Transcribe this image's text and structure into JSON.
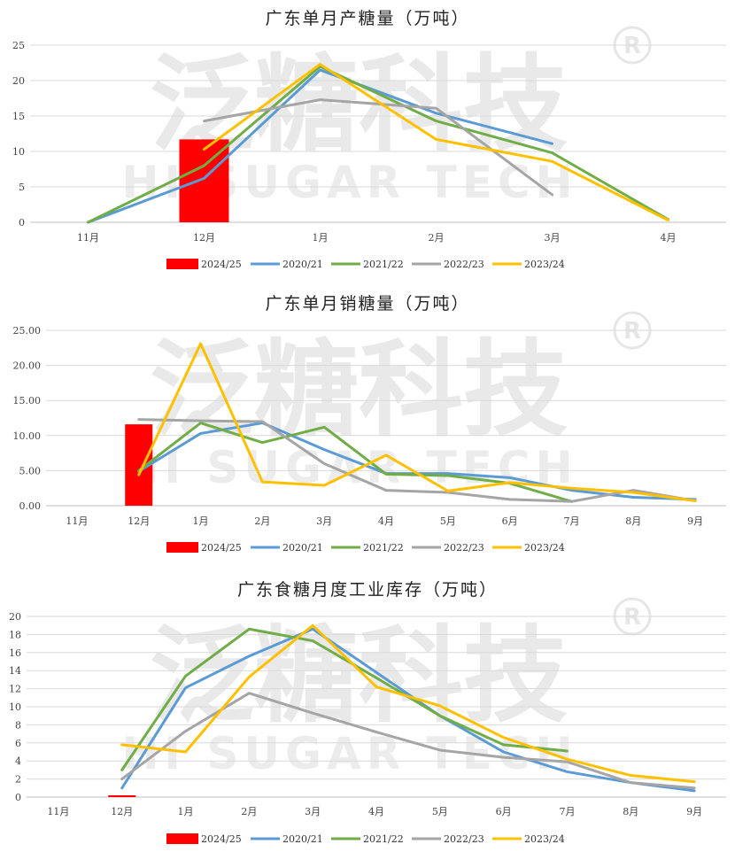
{
  "watermark": {
    "cn": "泛糖科技",
    "en": "HI SUGAR TECH",
    "mark": "®"
  },
  "colors": {
    "2024/25": "#ff0000",
    "2020/21": "#5b9bd5",
    "2021/22": "#70ad47",
    "2022/23": "#a5a5a5",
    "2023/24": "#ffc000"
  },
  "chart_data": [
    {
      "type": "line",
      "title": "广东单月产糖量（万吨）",
      "categories": [
        "11月",
        "12月",
        "1月",
        "2月",
        "3月",
        "4月"
      ],
      "ylim": [
        0,
        25
      ],
      "yticks": [
        "0",
        "5",
        "10",
        "15",
        "20",
        "25"
      ],
      "ytick_values": [
        0,
        5,
        10,
        15,
        20,
        25
      ],
      "grid": true,
      "legend": "bottom",
      "series": [
        {
          "name": "2024/25",
          "kind": "bar",
          "values": [
            null,
            11.7,
            null,
            null,
            null,
            null
          ]
        },
        {
          "name": "2020/21",
          "kind": "line",
          "values": [
            0,
            6.2,
            21.5,
            15.4,
            11.1,
            null
          ]
        },
        {
          "name": "2021/22",
          "kind": "line",
          "values": [
            0,
            8.0,
            22.0,
            14.3,
            9.8,
            0.4
          ]
        },
        {
          "name": "2022/23",
          "kind": "line",
          "values": [
            null,
            14.3,
            17.3,
            16.1,
            3.9,
            null
          ]
        },
        {
          "name": "2023/24",
          "kind": "line",
          "values": [
            null,
            10.3,
            22.3,
            11.7,
            8.6,
            0.3
          ]
        }
      ]
    },
    {
      "type": "line",
      "title": "广东单月销糖量（万吨）",
      "categories": [
        "11月",
        "12月",
        "1月",
        "2月",
        "3月",
        "4月",
        "5月",
        "6月",
        "7月",
        "8月",
        "9月"
      ],
      "ylim": [
        0,
        25
      ],
      "yticks": [
        "0.00",
        "5.00",
        "10.00",
        "15.00",
        "20.00",
        "25.00"
      ],
      "ytick_values": [
        0,
        5,
        10,
        15,
        20,
        25
      ],
      "grid": true,
      "legend": "bottom",
      "series": [
        {
          "name": "2024/25",
          "kind": "bar",
          "values": [
            null,
            11.6,
            null,
            null,
            null,
            null,
            null,
            null,
            null,
            null,
            null
          ]
        },
        {
          "name": "2020/21",
          "kind": "line",
          "values": [
            null,
            4.9,
            10.3,
            11.8,
            8.0,
            4.6,
            4.6,
            4.0,
            2.2,
            1.2,
            0.9
          ]
        },
        {
          "name": "2021/22",
          "kind": "line",
          "values": [
            null,
            5.0,
            11.8,
            9.0,
            11.2,
            4.5,
            4.3,
            3.2,
            0.6,
            null,
            null
          ]
        },
        {
          "name": "2022/23",
          "kind": "line",
          "values": [
            null,
            12.3,
            12.1,
            12.0,
            6.0,
            2.2,
            1.9,
            0.9,
            0.6,
            2.2,
            0.7
          ]
        },
        {
          "name": "2023/24",
          "kind": "line",
          "values": [
            null,
            4.4,
            23.1,
            3.4,
            2.9,
            7.2,
            2.1,
            3.3,
            2.5,
            1.9,
            0.7
          ]
        }
      ]
    },
    {
      "type": "line",
      "title": "广东食糖月度工业库存（万吨）",
      "categories": [
        "11月",
        "12月",
        "1月",
        "2月",
        "3月",
        "4月",
        "5月",
        "6月",
        "7月",
        "8月",
        "9月"
      ],
      "ylim": [
        0,
        20
      ],
      "yticks": [
        "0",
        "2",
        "4",
        "6",
        "8",
        "10",
        "12",
        "14",
        "16",
        "18",
        "20"
      ],
      "ytick_values": [
        0,
        2,
        4,
        6,
        8,
        10,
        12,
        14,
        16,
        18,
        20
      ],
      "grid": true,
      "legend": "bottom",
      "series": [
        {
          "name": "2024/25",
          "kind": "bar",
          "values": [
            null,
            0.2,
            null,
            null,
            null,
            null,
            null,
            null,
            null,
            null,
            null
          ]
        },
        {
          "name": "2020/21",
          "kind": "line",
          "values": [
            null,
            1.0,
            12.1,
            15.6,
            18.6,
            13.8,
            9.0,
            5.0,
            2.8,
            1.6,
            0.7
          ]
        },
        {
          "name": "2021/22",
          "kind": "line",
          "values": [
            null,
            3.0,
            13.4,
            18.6,
            17.3,
            13.2,
            9.0,
            5.8,
            5.1,
            null,
            null
          ]
        },
        {
          "name": "2022/23",
          "kind": "line",
          "values": [
            null,
            2.0,
            7.3,
            11.5,
            9.3,
            7.2,
            5.2,
            4.4,
            3.9,
            1.6,
            1.0
          ]
        },
        {
          "name": "2023/24",
          "kind": "line",
          "values": [
            null,
            5.8,
            5.0,
            13.3,
            19.0,
            12.2,
            10.1,
            6.6,
            4.2,
            2.4,
            1.7
          ]
        }
      ]
    }
  ]
}
